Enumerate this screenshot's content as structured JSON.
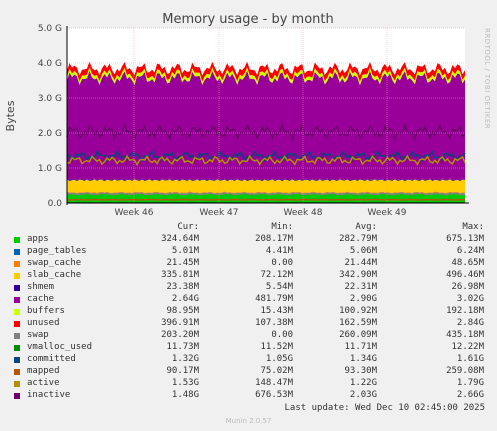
{
  "chart_data": {
    "type": "area",
    "title": "Memory usage - by month",
    "ylabel": "Bytes",
    "ylim": [
      0,
      5.0
    ],
    "y_unit": "G",
    "yticks": [
      "0.0",
      "1.0 G",
      "2.0 G",
      "3.0 G",
      "4.0 G",
      "5.0 G"
    ],
    "xticks": [
      "Week 46",
      "Week 47",
      "Week 48",
      "Week 49"
    ],
    "side_text": "RRDTOOL / TOBI OETIKER",
    "legend_headers": [
      "Cur:",
      "Min:",
      "Avg:",
      "Max:"
    ],
    "series": [
      {
        "name": "apps",
        "color": "#00cc00",
        "cur": "324.64M",
        "min": "208.17M",
        "avg": "282.79M",
        "max": "675.13M",
        "avg_g": 0.283
      },
      {
        "name": "page_tables",
        "color": "#0066b3",
        "cur": "5.01M",
        "min": "4.41M",
        "avg": "5.06M",
        "max": "6.24M",
        "avg_g": 0.005
      },
      {
        "name": "swap_cache",
        "color": "#ff8000",
        "cur": "21.45M",
        "min": "0.00",
        "avg": "21.44M",
        "max": "48.65M",
        "avg_g": 0.021
      },
      {
        "name": "slab_cache",
        "color": "#ffcc00",
        "cur": "335.81M",
        "min": "72.12M",
        "avg": "342.90M",
        "max": "496.46M",
        "avg_g": 0.343
      },
      {
        "name": "shmem",
        "color": "#330099",
        "cur": "23.38M",
        "min": "5.54M",
        "avg": "22.31M",
        "max": "26.98M",
        "avg_g": 0.022
      },
      {
        "name": "cache",
        "color": "#990099",
        "cur": "2.64G",
        "min": "481.79M",
        "avg": "2.90G",
        "max": "3.02G",
        "avg_g": 2.9
      },
      {
        "name": "buffers",
        "color": "#ccff00",
        "cur": "98.95M",
        "min": "15.43M",
        "avg": "100.92M",
        "max": "192.18M",
        "avg_g": 0.101
      },
      {
        "name": "unused",
        "color": "#ff0000",
        "cur": "396.91M",
        "min": "107.38M",
        "avg": "162.59M",
        "max": "2.84G",
        "avg_g": 0.163
      },
      {
        "name": "swap",
        "color": "#808080",
        "cur": "203.20M",
        "min": "0.00",
        "avg": "260.09M",
        "max": "435.18M",
        "avg_g": 0.26
      },
      {
        "name": "vmalloc_used",
        "color": "#008f00",
        "cur": "11.73M",
        "min": "11.52M",
        "avg": "11.71M",
        "max": "12.22M",
        "avg_g": 0.012
      },
      {
        "name": "committed",
        "color": "#00487d",
        "cur": "1.32G",
        "min": "1.05G",
        "avg": "1.34G",
        "max": "1.61G",
        "avg_g": 1.34
      },
      {
        "name": "mapped",
        "color": "#b35a00",
        "cur": "90.17M",
        "min": "75.02M",
        "avg": "93.30M",
        "max": "259.08M",
        "avg_g": 0.093
      },
      {
        "name": "active",
        "color": "#b38f00",
        "cur": "1.53G",
        "min": "148.47M",
        "avg": "1.22G",
        "max": "1.79G",
        "avg_g": 1.22
      },
      {
        "name": "inactive",
        "color": "#6b006b",
        "cur": "1.48G",
        "min": "676.53M",
        "avg": "2.03G",
        "max": "2.66G",
        "avg_g": 2.03
      }
    ]
  },
  "footer": "Last update: Wed Dec 10 02:45:00 2025",
  "munin_version": "Munin 2.0.57",
  "colors": {
    "background": "#f0f0f0",
    "plot": "#ffffff",
    "grid": "#ff9999"
  }
}
